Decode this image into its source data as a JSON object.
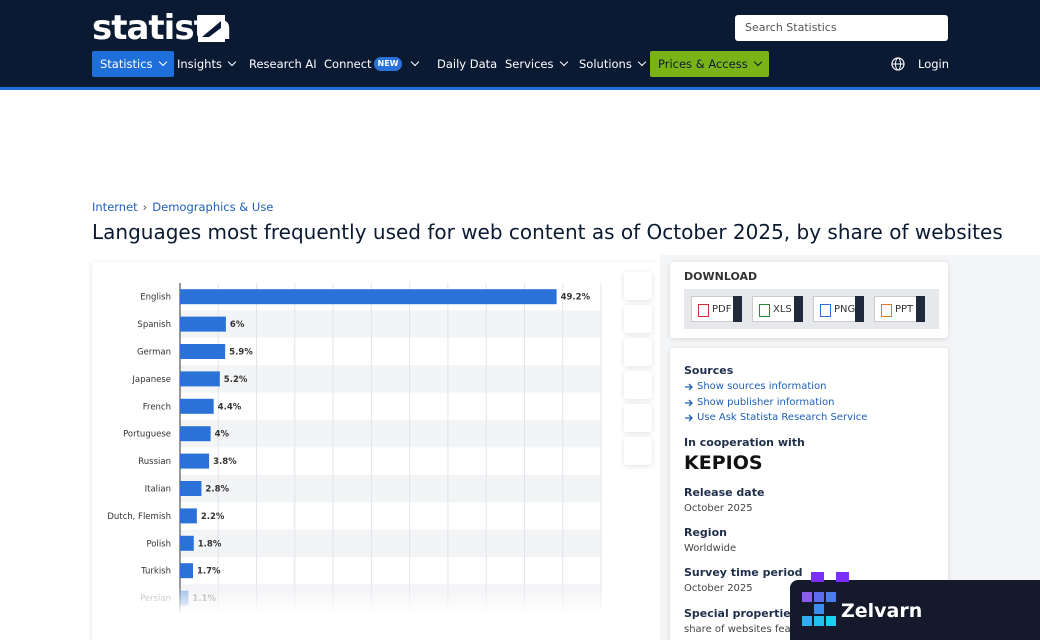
{
  "header": {
    "logo": "statista",
    "search_placeholder": "Search Statistics",
    "nav": [
      "Statistics",
      "Insights",
      "Research AI",
      "Connect",
      "Daily Data",
      "Services",
      "Solutions",
      "Prices & Access"
    ],
    "badge": "NEW",
    "login": "Login"
  },
  "breadcrumb": [
    "Internet",
    "Demographics & Use"
  ],
  "title": "Languages most frequently used for web content as of October 2025, by share of websites",
  "chart_data": {
    "type": "hbar",
    "categories": [
      "English",
      "Spanish",
      "German",
      "Japanese",
      "French",
      "Portuguese",
      "Russian",
      "Italian",
      "Dutch, Flemish",
      "Polish",
      "Turkish",
      "Persian"
    ],
    "values": [
      49.2,
      6,
      5.9,
      5.2,
      4.4,
      4,
      3.8,
      2.8,
      2.2,
      1.8,
      1.7,
      1.1
    ],
    "value_labels": [
      "49.2%",
      "6%",
      "5.9%",
      "5.2%",
      "4.4%",
      "4%",
      "3.8%",
      "2.8%",
      "2.2%",
      "1.8%",
      "1.7%",
      "1.1%"
    ],
    "color": "#2b72d8",
    "xlim": [
      0,
      55
    ],
    "xticks": [
      0,
      5,
      10,
      15,
      20,
      25,
      30,
      35,
      40,
      45,
      50,
      55
    ],
    "grid": true
  },
  "download": {
    "heading": "DOWNLOAD",
    "formats": [
      "PDF",
      "XLS",
      "PNG",
      "PPT"
    ]
  },
  "sources": {
    "heading": "Sources",
    "links": [
      "Show sources information",
      "Show publisher information",
      "Use Ask Statista Research Service"
    ]
  },
  "cooperation": {
    "heading": "In cooperation with",
    "partner": "KEPIOS"
  },
  "details": [
    {
      "label": "Release date",
      "value": "October 2025"
    },
    {
      "label": "Region",
      "value": "Worldwide"
    },
    {
      "label": "Survey time period",
      "value": "October 2025"
    },
    {
      "label": "Special properties",
      "value": "share of websites featu"
    }
  ],
  "overlay": {
    "brand": "Zelvarn"
  }
}
